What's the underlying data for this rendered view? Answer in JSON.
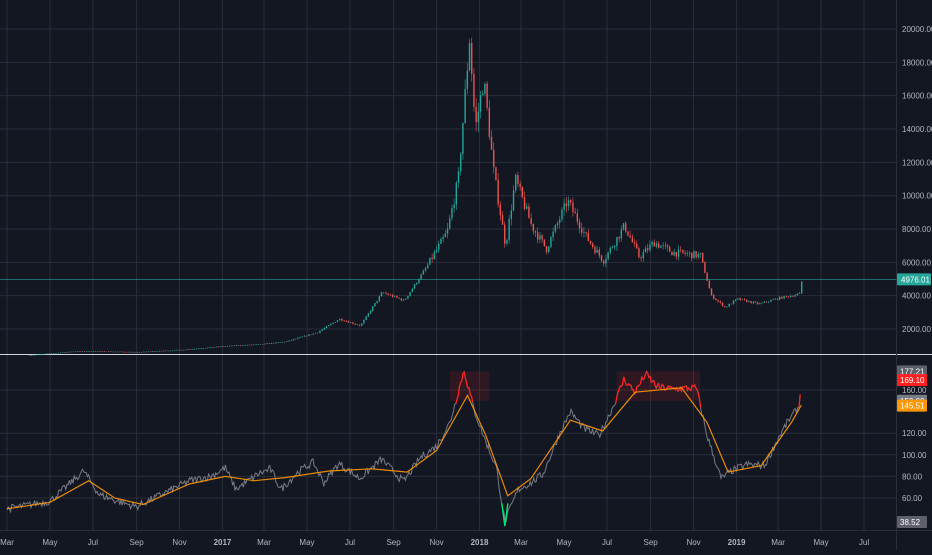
{
  "colors": {
    "background": "#131722",
    "grid": "#2a2e39",
    "axis_text": "#b2b5be",
    "candle_up": "#26a69a",
    "candle_down": "#ef5350",
    "current_price_line": "#26a69a",
    "indicator_main": "#787b86",
    "indicator_ma": "#ff9800",
    "indicator_extreme_high": "#ff1f1f",
    "indicator_extreme_low": "#00e676",
    "label_text": "#ffffff"
  },
  "chart_data": [
    {
      "type": "candlestick",
      "panel": "price",
      "y_ticks": [
        "2000.00",
        "4000.00",
        "6000.00",
        "8000.00",
        "10000.00",
        "12000.00",
        "14000.00",
        "16000.00",
        "18000.00",
        "20000.00"
      ],
      "ylim": [
        0,
        21000
      ],
      "current_price_label": "4976.01",
      "current_price": 4976.01,
      "grid": true,
      "x_date_range": [
        "2016-03-01",
        "2019-08-01"
      ],
      "series_close": [
        {
          "x": "2016-04-01",
          "y": 420
        },
        {
          "x": "2016-06-01",
          "y": 650
        },
        {
          "x": "2016-07-01",
          "y": 670
        },
        {
          "x": "2016-09-01",
          "y": 610
        },
        {
          "x": "2016-11-01",
          "y": 740
        },
        {
          "x": "2017-01-01",
          "y": 960
        },
        {
          "x": "2017-03-01",
          "y": 1100
        },
        {
          "x": "2017-04-01",
          "y": 1250
        },
        {
          "x": "2017-05-15",
          "y": 1800
        },
        {
          "x": "2017-06-15",
          "y": 2600
        },
        {
          "x": "2017-07-15",
          "y": 2200
        },
        {
          "x": "2017-08-15",
          "y": 4200
        },
        {
          "x": "2017-09-15",
          "y": 3700
        },
        {
          "x": "2017-10-15",
          "y": 5600
        },
        {
          "x": "2017-11-15",
          "y": 7800
        },
        {
          "x": "2017-12-01",
          "y": 11000
        },
        {
          "x": "2017-12-17",
          "y": 19500
        },
        {
          "x": "2017-12-25",
          "y": 14000
        },
        {
          "x": "2018-01-06",
          "y": 17000
        },
        {
          "x": "2018-01-20",
          "y": 11500
        },
        {
          "x": "2018-02-06",
          "y": 7000
        },
        {
          "x": "2018-02-20",
          "y": 11000
        },
        {
          "x": "2018-03-15",
          "y": 8200
        },
        {
          "x": "2018-04-05",
          "y": 6800
        },
        {
          "x": "2018-05-05",
          "y": 9700
        },
        {
          "x": "2018-06-01",
          "y": 7500
        },
        {
          "x": "2018-06-25",
          "y": 6100
        },
        {
          "x": "2018-07-25",
          "y": 8200
        },
        {
          "x": "2018-08-15",
          "y": 6300
        },
        {
          "x": "2018-09-05",
          "y": 7200
        },
        {
          "x": "2018-10-01",
          "y": 6600
        },
        {
          "x": "2018-11-10",
          "y": 6400
        },
        {
          "x": "2018-11-25",
          "y": 4000
        },
        {
          "x": "2018-12-15",
          "y": 3300
        },
        {
          "x": "2019-01-01",
          "y": 3800
        },
        {
          "x": "2019-02-01",
          "y": 3500
        },
        {
          "x": "2019-03-01",
          "y": 3850
        },
        {
          "x": "2019-03-31",
          "y": 4100
        },
        {
          "x": "2019-04-03",
          "y": 4976
        }
      ]
    },
    {
      "type": "line",
      "panel": "indicator",
      "y_ticks": [
        "60.00",
        "80.00",
        "100.00",
        "120.00",
        "160.00"
      ],
      "ylim": [
        30,
        182
      ],
      "labels": {
        "upper": "177.21",
        "current": "169.10",
        "level": "150.00",
        "ma": "145.51",
        "lower": "38.52"
      },
      "bands": [
        150,
        177.21
      ],
      "grid": true,
      "series": [
        {
          "role": "main",
          "values": [
            {
              "x": "2016-03-01",
              "y": 50
            },
            {
              "x": "2016-05-01",
              "y": 57
            },
            {
              "x": "2016-06-18",
              "y": 85
            },
            {
              "x": "2016-07-10",
              "y": 63
            },
            {
              "x": "2016-08-15",
              "y": 55
            },
            {
              "x": "2016-09-01",
              "y": 52
            },
            {
              "x": "2016-10-15",
              "y": 66
            },
            {
              "x": "2016-11-15",
              "y": 76
            },
            {
              "x": "2016-12-15",
              "y": 80
            },
            {
              "x": "2017-01-05",
              "y": 88
            },
            {
              "x": "2017-01-20",
              "y": 68
            },
            {
              "x": "2017-02-20",
              "y": 82
            },
            {
              "x": "2017-03-10",
              "y": 87
            },
            {
              "x": "2017-03-25",
              "y": 68
            },
            {
              "x": "2017-04-20",
              "y": 85
            },
            {
              "x": "2017-05-10",
              "y": 93
            },
            {
              "x": "2017-05-25",
              "y": 74
            },
            {
              "x": "2017-06-15",
              "y": 92
            },
            {
              "x": "2017-07-15",
              "y": 78
            },
            {
              "x": "2017-08-15",
              "y": 96
            },
            {
              "x": "2017-09-15",
              "y": 75
            },
            {
              "x": "2017-10-10",
              "y": 98
            },
            {
              "x": "2017-11-01",
              "y": 108
            },
            {
              "x": "2017-11-20",
              "y": 130
            },
            {
              "x": "2017-12-10",
              "y": 178
            },
            {
              "x": "2017-12-25",
              "y": 140
            },
            {
              "x": "2018-01-10",
              "y": 112
            },
            {
              "x": "2018-01-25",
              "y": 88
            },
            {
              "x": "2018-02-06",
              "y": 38
            },
            {
              "x": "2018-02-25",
              "y": 68
            },
            {
              "x": "2018-03-15",
              "y": 74
            },
            {
              "x": "2018-04-01",
              "y": 82
            },
            {
              "x": "2018-04-25",
              "y": 120
            },
            {
              "x": "2018-05-10",
              "y": 140
            },
            {
              "x": "2018-05-30",
              "y": 124
            },
            {
              "x": "2018-06-20",
              "y": 118
            },
            {
              "x": "2018-07-10",
              "y": 145
            },
            {
              "x": "2018-07-25",
              "y": 170
            },
            {
              "x": "2018-08-10",
              "y": 158
            },
            {
              "x": "2018-08-25",
              "y": 175
            },
            {
              "x": "2018-09-10",
              "y": 163
            },
            {
              "x": "2018-10-01",
              "y": 161
            },
            {
              "x": "2018-11-05",
              "y": 162
            },
            {
              "x": "2018-11-20",
              "y": 118
            },
            {
              "x": "2018-12-10",
              "y": 78
            },
            {
              "x": "2018-12-25",
              "y": 85
            },
            {
              "x": "2019-01-15",
              "y": 91
            },
            {
              "x": "2019-02-10",
              "y": 90
            },
            {
              "x": "2019-03-01",
              "y": 115
            },
            {
              "x": "2019-03-15",
              "y": 131
            },
            {
              "x": "2019-03-31",
              "y": 145
            },
            {
              "x": "2019-04-03",
              "y": 169
            }
          ]
        },
        {
          "role": "moving_average",
          "values": [
            {
              "x": "2016-03-01",
              "y": 50
            },
            {
              "x": "2016-05-01",
              "y": 56
            },
            {
              "x": "2016-06-25",
              "y": 76
            },
            {
              "x": "2016-08-01",
              "y": 60
            },
            {
              "x": "2016-09-10",
              "y": 54
            },
            {
              "x": "2016-11-15",
              "y": 73
            },
            {
              "x": "2017-01-05",
              "y": 80
            },
            {
              "x": "2017-02-15",
              "y": 76
            },
            {
              "x": "2017-04-01",
              "y": 79
            },
            {
              "x": "2017-06-01",
              "y": 85
            },
            {
              "x": "2017-08-01",
              "y": 87
            },
            {
              "x": "2017-09-20",
              "y": 84
            },
            {
              "x": "2017-11-01",
              "y": 104
            },
            {
              "x": "2017-12-15",
              "y": 155
            },
            {
              "x": "2018-01-10",
              "y": 118
            },
            {
              "x": "2018-02-10",
              "y": 62
            },
            {
              "x": "2018-03-15",
              "y": 78
            },
            {
              "x": "2018-05-10",
              "y": 132
            },
            {
              "x": "2018-06-25",
              "y": 122
            },
            {
              "x": "2018-08-10",
              "y": 158
            },
            {
              "x": "2018-10-15",
              "y": 162
            },
            {
              "x": "2018-11-20",
              "y": 130
            },
            {
              "x": "2018-12-20",
              "y": 84
            },
            {
              "x": "2019-02-05",
              "y": 90
            },
            {
              "x": "2019-03-20",
              "y": 130
            },
            {
              "x": "2019-04-03",
              "y": 146
            }
          ]
        }
      ]
    }
  ],
  "x_axis": {
    "ticks": [
      {
        "label": "Mar",
        "date": "2016-03-01",
        "bold": false
      },
      {
        "label": "May",
        "date": "2016-05-01",
        "bold": false
      },
      {
        "label": "Jul",
        "date": "2016-07-01",
        "bold": false
      },
      {
        "label": "Sep",
        "date": "2016-09-01",
        "bold": false
      },
      {
        "label": "Nov",
        "date": "2016-11-01",
        "bold": false
      },
      {
        "label": "2017",
        "date": "2017-01-01",
        "bold": true
      },
      {
        "label": "Mar",
        "date": "2017-03-01",
        "bold": false
      },
      {
        "label": "May",
        "date": "2017-05-01",
        "bold": false
      },
      {
        "label": "Jul",
        "date": "2017-07-01",
        "bold": false
      },
      {
        "label": "Sep",
        "date": "2017-09-01",
        "bold": false
      },
      {
        "label": "Nov",
        "date": "2017-11-01",
        "bold": false
      },
      {
        "label": "2018",
        "date": "2018-01-01",
        "bold": true
      },
      {
        "label": "Mar",
        "date": "2018-03-01",
        "bold": false
      },
      {
        "label": "May",
        "date": "2018-05-01",
        "bold": false
      },
      {
        "label": "Jul",
        "date": "2018-07-01",
        "bold": false
      },
      {
        "label": "Sep",
        "date": "2018-09-01",
        "bold": false
      },
      {
        "label": "Nov",
        "date": "2018-11-01",
        "bold": false
      },
      {
        "label": "2019",
        "date": "2019-01-01",
        "bold": true
      },
      {
        "label": "Mar",
        "date": "2019-03-01",
        "bold": false
      },
      {
        "label": "May",
        "date": "2019-05-01",
        "bold": false
      },
      {
        "label": "Jul",
        "date": "2019-07-01",
        "bold": false
      }
    ]
  }
}
